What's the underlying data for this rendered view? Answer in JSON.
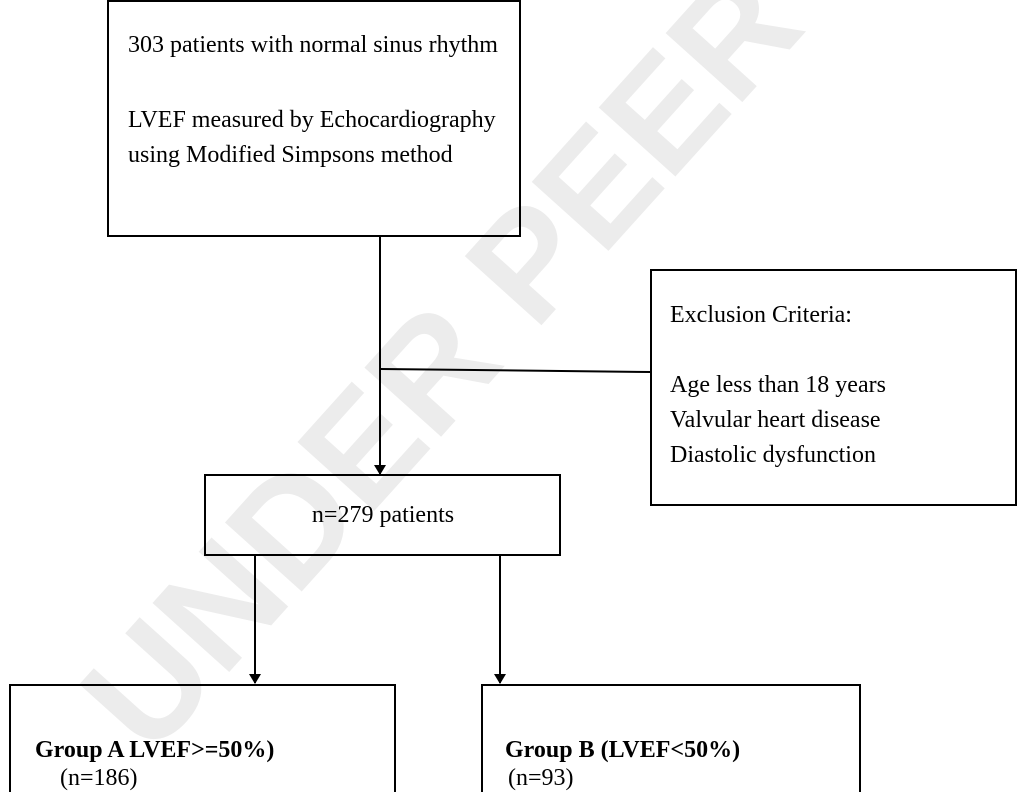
{
  "watermark": "UNDER PEER REVIEW",
  "nodes": [
    {
      "lines": [
        "303 patients with normal sinus rhythm",
        "LVEF measured by Echocardiography",
        "using Modified Simpsons method"
      ]
    },
    {
      "lines": [
        "Exclusion Criteria:",
        "Age less than 18 years",
        "Valvular heart disease",
        "Diastolic dysfunction"
      ]
    },
    {
      "lines": [
        "n=279 patients"
      ]
    },
    {
      "lines": [
        "Group A LVEF>=50%)",
        "(n=186)"
      ]
    },
    {
      "lines": [
        "Group B (LVEF<50%)",
        "(n=93)"
      ]
    }
  ]
}
